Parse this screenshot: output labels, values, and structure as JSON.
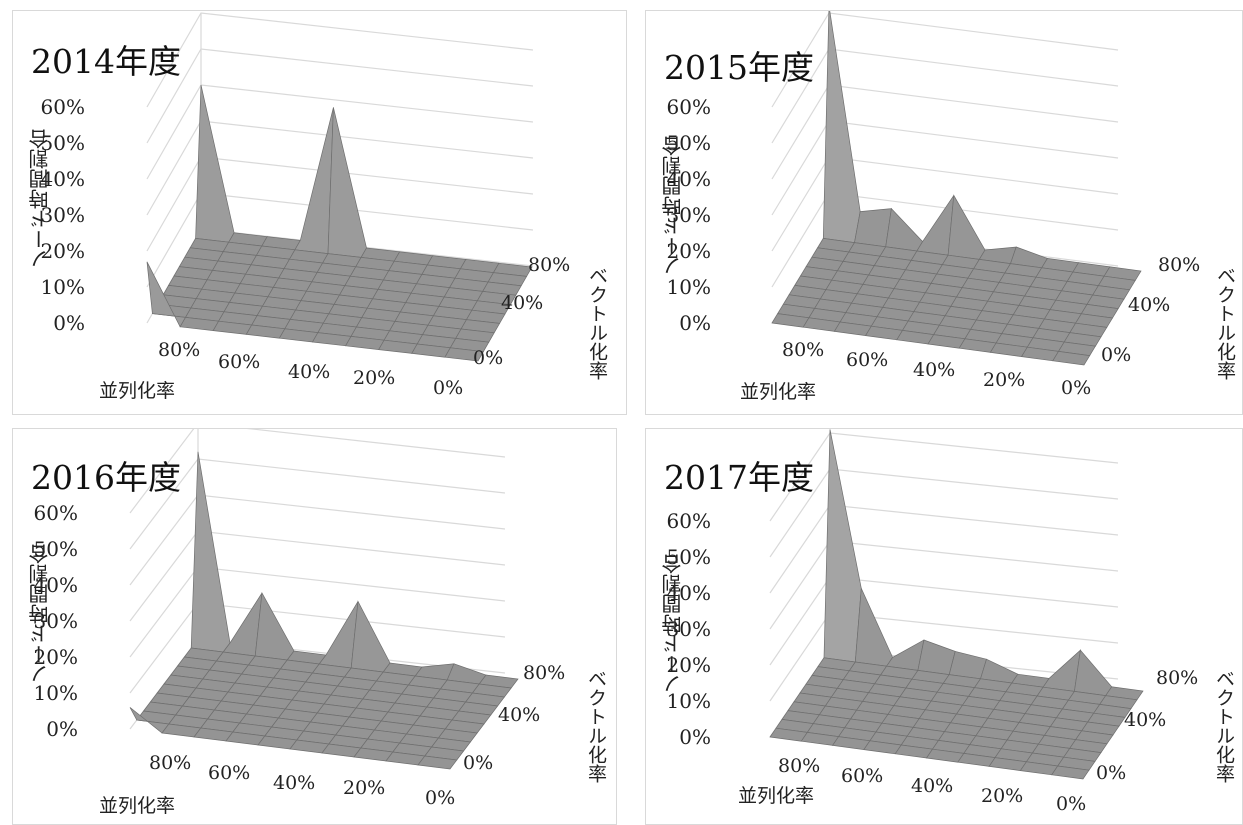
{
  "chart_data": [
    {
      "type": "surface",
      "title": "2014年度",
      "zlabel": "ノード時間割合",
      "xlabel": "並列化率",
      "ylabel": "ベクトル化率",
      "z_ticks": [
        "0%",
        "10%",
        "20%",
        "30%",
        "40%",
        "50%",
        "60%"
      ],
      "x_ticks": [
        "80%",
        "60%",
        "40%",
        "20%",
        "0%"
      ],
      "y_ticks": [
        "0%",
        "40%",
        "80%"
      ],
      "zlim": [
        0,
        60
      ],
      "peaks": [
        {
          "parallel": 100,
          "vector": 0,
          "value": 17
        },
        {
          "parallel": 100,
          "vector": 100,
          "value": 40
        },
        {
          "parallel": 60,
          "vector": 100,
          "value": 38
        }
      ]
    },
    {
      "type": "surface",
      "title": "2015年度",
      "zlabel": "ノード時間割合",
      "xlabel": "並列化率",
      "ylabel": "ベクトル化率",
      "z_ticks": [
        "0%",
        "10%",
        "20%",
        "30%",
        "40%",
        "50%",
        "60%"
      ],
      "x_ticks": [
        "80%",
        "60%",
        "40%",
        "20%",
        "0%"
      ],
      "y_ticks": [
        "0%",
        "40%",
        "80%"
      ],
      "zlim": [
        0,
        60
      ],
      "peaks": [
        {
          "parallel": 100,
          "vector": 100,
          "value": 62
        },
        {
          "parallel": 90,
          "vector": 100,
          "value": 6
        },
        {
          "parallel": 80,
          "vector": 100,
          "value": 8
        },
        {
          "parallel": 60,
          "vector": 100,
          "value": 14
        },
        {
          "parallel": 40,
          "vector": 100,
          "value": 2
        }
      ]
    },
    {
      "type": "surface",
      "title": "2016年度",
      "zlabel": "ノード時間割合",
      "xlabel": "並列化率",
      "ylabel": "ベクトル化率",
      "z_ticks": [
        "0%",
        "10%",
        "20%",
        "30%",
        "40%",
        "50%",
        "60%"
      ],
      "x_ticks": [
        "80%",
        "60%",
        "40%",
        "20%",
        "0%"
      ],
      "y_ticks": [
        "0%",
        "40%",
        "80%"
      ],
      "zlim": [
        0,
        60
      ],
      "peaks": [
        {
          "parallel": 100,
          "vector": 0,
          "value": 6
        },
        {
          "parallel": 100,
          "vector": 100,
          "value": 52
        },
        {
          "parallel": 80,
          "vector": 100,
          "value": 15
        },
        {
          "parallel": 50,
          "vector": 100,
          "value": 16
        },
        {
          "parallel": 20,
          "vector": 100,
          "value": 2
        }
      ]
    },
    {
      "type": "surface",
      "title": "2017年度",
      "zlabel": "ノード時間割合",
      "xlabel": "並列化率",
      "ylabel": "ベクトル化率",
      "z_ticks": [
        "0%",
        "10%",
        "20%",
        "30%",
        "40%",
        "50%",
        "60%"
      ],
      "x_ticks": [
        "80%",
        "60%",
        "40%",
        "20%",
        "0%"
      ],
      "y_ticks": [
        "0%",
        "40%",
        "80%"
      ],
      "zlim": [
        0,
        60
      ],
      "peaks": [
        {
          "parallel": 100,
          "vector": 100,
          "value": 61
        },
        {
          "parallel": 90,
          "vector": 100,
          "value": 18
        },
        {
          "parallel": 70,
          "vector": 100,
          "value": 6
        },
        {
          "parallel": 60,
          "vector": 100,
          "value": 4
        },
        {
          "parallel": 50,
          "vector": 100,
          "value": 3
        },
        {
          "parallel": 20,
          "vector": 100,
          "value": 9
        }
      ]
    }
  ]
}
